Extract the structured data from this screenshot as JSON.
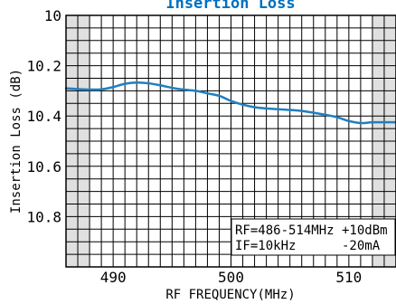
{
  "colors": {
    "title": "#0070c0",
    "curve": "#1f7fc0",
    "shade": "#e0e0e0",
    "grid": "#000000",
    "frame": "#000000"
  },
  "chart_data": {
    "type": "line",
    "title": "Insertion Loss",
    "xlabel": "RF FREQUENCY(MHz)",
    "ylabel": "Insertion Loss (dB)",
    "xlim": [
      486,
      514
    ],
    "ylim": [
      10,
      11
    ],
    "y_inverted": true,
    "grid": true,
    "x_major_ticks": [
      490,
      500,
      510
    ],
    "y_major_ticks": [
      10,
      10.2,
      10.4,
      10.6,
      10.8
    ],
    "y_tick_labels": [
      "10",
      "10.2",
      "10.4",
      "10.6",
      "10.8"
    ],
    "shaded_x_ranges": [
      [
        486,
        488
      ],
      [
        512,
        514
      ]
    ],
    "series": [
      {
        "x": [
          486,
          487,
          488,
          489,
          490,
          491,
          492,
          493,
          494,
          495,
          496,
          497,
          498,
          499,
          500,
          501,
          502,
          503,
          504,
          505,
          506,
          507,
          508,
          509,
          510,
          511,
          512,
          513,
          514
        ],
        "y": [
          10.29,
          10.293,
          10.295,
          10.294,
          10.285,
          10.272,
          10.267,
          10.27,
          10.278,
          10.288,
          10.295,
          10.3,
          10.31,
          10.32,
          10.34,
          10.355,
          10.365,
          10.37,
          10.373,
          10.376,
          10.38,
          10.387,
          10.395,
          10.405,
          10.42,
          10.428,
          10.425,
          10.425,
          10.425
        ]
      }
    ],
    "legend_lines": [
      "RF=486-514MHz +10dBm",
      "IF=10kHz      -20mA"
    ],
    "legend_position": "bottom-right"
  }
}
